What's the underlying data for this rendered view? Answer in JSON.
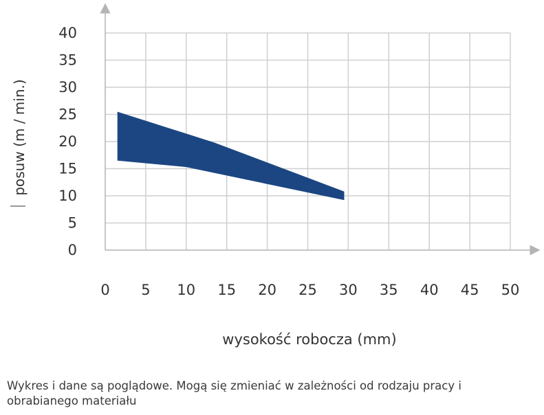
{
  "chart_data": {
    "type": "area",
    "xlabel": "wysokość robocza (mm)",
    "ylabel": "posuw (m / min.)",
    "x_ticks": [
      "0",
      "5",
      "10",
      "15",
      "20",
      "25",
      "30",
      "35",
      "40",
      "45",
      "50"
    ],
    "y_ticks": [
      "0",
      "5",
      "10",
      "15",
      "20",
      "25",
      "30",
      "35",
      "40"
    ],
    "xlim": [
      0,
      50
    ],
    "ylim": [
      0,
      40
    ],
    "grid": true,
    "colors": {
      "band": "#1b4682",
      "grid": "#cfcfcf",
      "axis": "#b4b4b4"
    },
    "series": [
      {
        "upper": [
          [
            1.5,
            25.5
          ],
          [
            13.5,
            19.8
          ],
          [
            29.5,
            10.8
          ]
        ],
        "lower": [
          [
            1.5,
            16.5
          ],
          [
            10,
            15.3
          ],
          [
            29.5,
            9.2
          ]
        ]
      }
    ]
  },
  "footnote": "Wykres i dane są poglądowe. Mogą się zmieniać w zależności od rodzaju pracy i obrabianego materiału"
}
